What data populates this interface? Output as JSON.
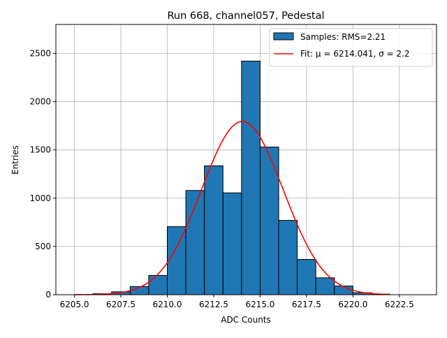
{
  "chart_data": {
    "type": "bar",
    "title": "Run 668, channel057, Pedestal",
    "xlabel": "ADC Counts",
    "ylabel": "Entries",
    "xlim": [
      6204.0,
      6224.5
    ],
    "ylim": [
      0,
      2800
    ],
    "grid": true,
    "legend_position": "top-right",
    "x_ticks": [
      6205.0,
      6207.5,
      6210.0,
      6212.5,
      6215.0,
      6217.5,
      6220.0,
      6222.5
    ],
    "x_tick_labels": [
      "6205.0",
      "6207.5",
      "6210.0",
      "6212.5",
      "6215.0",
      "6217.5",
      "6220.0",
      "6222.5"
    ],
    "y_ticks": [
      0,
      500,
      1000,
      1500,
      2000,
      2500
    ],
    "y_tick_labels": [
      "0",
      "500",
      "1000",
      "1500",
      "2000",
      "2500"
    ],
    "bins": [
      {
        "x0": 6206,
        "x1": 6207,
        "value": 10
      },
      {
        "x0": 6207,
        "x1": 6208,
        "value": 30
      },
      {
        "x0": 6208,
        "x1": 6209,
        "value": 85
      },
      {
        "x0": 6209,
        "x1": 6210,
        "value": 200
      },
      {
        "x0": 6210,
        "x1": 6211,
        "value": 705
      },
      {
        "x0": 6211,
        "x1": 6212,
        "value": 1080
      },
      {
        "x0": 6212,
        "x1": 6213,
        "value": 1335
      },
      {
        "x0": 6213,
        "x1": 6214,
        "value": 1055
      },
      {
        "x0": 6214,
        "x1": 6215,
        "value": 2420
      },
      {
        "x0": 6215,
        "x1": 6216,
        "value": 1530
      },
      {
        "x0": 6216,
        "x1": 6217,
        "value": 770
      },
      {
        "x0": 6217,
        "x1": 6218,
        "value": 365
      },
      {
        "x0": 6218,
        "x1": 6219,
        "value": 175
      },
      {
        "x0": 6219,
        "x1": 6220,
        "value": 90
      },
      {
        "x0": 6220,
        "x1": 6221,
        "value": 20
      },
      {
        "x0": 6221,
        "x1": 6222,
        "value": 5
      }
    ],
    "fit": {
      "mu": 6214.041,
      "sigma": 2.2,
      "amplitude": 1795,
      "x_range": [
        6205.0,
        6222.0
      ]
    },
    "series": [
      {
        "name": "Samples: RMS=2.21",
        "color": "#1f77b4",
        "kind": "histogram"
      },
      {
        "name": "Fit: μ = 6214.041, σ = 2.2",
        "color": "#ff0000",
        "kind": "line"
      }
    ]
  }
}
